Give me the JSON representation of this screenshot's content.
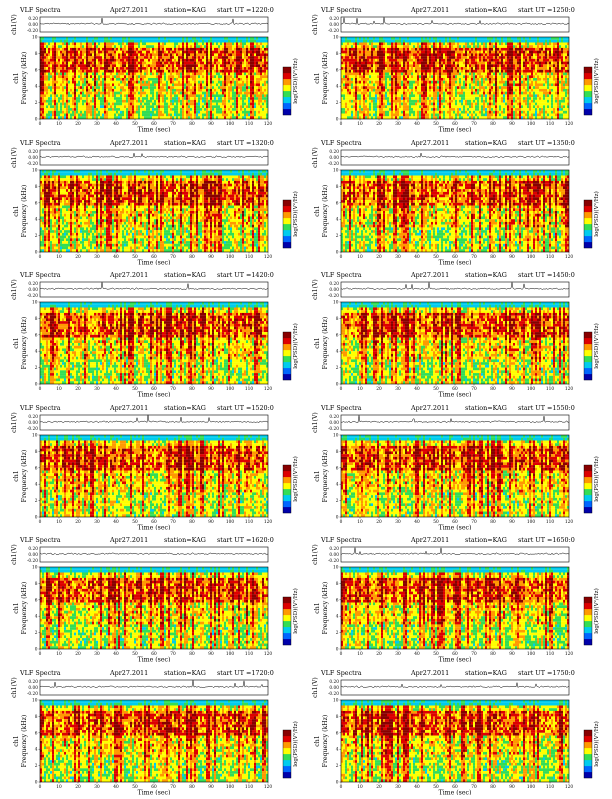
{
  "figure": {
    "panels": [
      {
        "ut": "1220:0"
      },
      {
        "ut": "1250:0"
      },
      {
        "ut": "1320:0"
      },
      {
        "ut": "1350:0"
      },
      {
        "ut": "1420:0"
      },
      {
        "ut": "1450:0"
      },
      {
        "ut": "1520:0"
      },
      {
        "ut": "1550:0"
      },
      {
        "ut": "1620:0"
      },
      {
        "ut": "1650:0"
      },
      {
        "ut": "1720:0"
      },
      {
        "ut": "1750:0"
      }
    ],
    "common": {
      "title_left": "VLF Spectra",
      "date": "Apr27.2011",
      "station": "station=KAG",
      "start_label": "start UT =",
      "top_ylabel": "ch1(V)",
      "top_ticks": [
        "0.20",
        "0.00",
        "-0.20"
      ],
      "spec_ylabel_ch": "ch1",
      "spec_ylabel": "Frequency (kHz)",
      "xlabel": "Time (sec)",
      "x_ticks": [
        "0",
        "10",
        "20",
        "30",
        "40",
        "50",
        "60",
        "70",
        "80",
        "90",
        "100",
        "110",
        "120"
      ],
      "y_ticks": [
        "0",
        "2",
        "4",
        "6",
        "8",
        "10"
      ],
      "colorbar_label": "log(PSD)(V²/Hz)"
    },
    "colors": {
      "spectrum_scale": [
        "#0000aa",
        "#0066ff",
        "#00ccee",
        "#33dd55",
        "#ffff00",
        "#ff9900",
        "#dd0000",
        "#880000"
      ],
      "background": "#ffffff",
      "trace": "#000000"
    }
  },
  "chart_data": [
    {
      "type": "heatmap",
      "title": "VLF Spectra Apr27.2011 station=KAG start UT =1220:0",
      "ylabel_top": "ch1(V)",
      "ylabel": "Frequency (kHz)",
      "xlabel": "Time (sec)",
      "xlim": [
        0,
        120
      ],
      "ylim": [
        0,
        10
      ],
      "top_ylim": [
        -0.2,
        0.2
      ],
      "colorbar_label": "log(PSD)(V²/Hz)"
    },
    {
      "type": "heatmap",
      "title": "VLF Spectra Apr27.2011 station=KAG start UT =1250:0",
      "ylabel_top": "ch1(V)",
      "ylabel": "Frequency (kHz)",
      "xlabel": "Time (sec)",
      "xlim": [
        0,
        120
      ],
      "ylim": [
        0,
        10
      ],
      "top_ylim": [
        -0.2,
        0.2
      ],
      "colorbar_label": "log(PSD)(V²/Hz)"
    },
    {
      "type": "heatmap",
      "title": "VLF Spectra Apr27.2011 station=KAG start UT =1320:0",
      "ylabel_top": "ch1(V)",
      "ylabel": "Frequency (kHz)",
      "xlabel": "Time (sec)",
      "xlim": [
        0,
        120
      ],
      "ylim": [
        0,
        10
      ],
      "top_ylim": [
        -0.2,
        0.2
      ],
      "colorbar_label": "log(PSD)(V²/Hz)"
    },
    {
      "type": "heatmap",
      "title": "VLF Spectra Apr27.2011 station=KAG start UT =1350:0",
      "ylabel_top": "ch1(V)",
      "ylabel": "Frequency (kHz)",
      "xlabel": "Time (sec)",
      "xlim": [
        0,
        120
      ],
      "ylim": [
        0,
        10
      ],
      "top_ylim": [
        -0.2,
        0.2
      ],
      "colorbar_label": "log(PSD)(V²/Hz)"
    },
    {
      "type": "heatmap",
      "title": "VLF Spectra Apr27.2011 station=KAG start UT =1420:0",
      "ylabel_top": "ch1(V)",
      "ylabel": "Frequency (kHz)",
      "xlabel": "Time (sec)",
      "xlim": [
        0,
        120
      ],
      "ylim": [
        0,
        10
      ],
      "top_ylim": [
        -0.2,
        0.2
      ],
      "colorbar_label": "log(PSD)(V²/Hz)"
    },
    {
      "type": "heatmap",
      "title": "VLF Spectra Apr27.2011 station=KAG start UT =1450:0",
      "ylabel_top": "ch1(V)",
      "ylabel": "Frequency (kHz)",
      "xlabel": "Time (sec)",
      "xlim": [
        0,
        120
      ],
      "ylim": [
        0,
        10
      ],
      "top_ylim": [
        -0.2,
        0.2
      ],
      "colorbar_label": "log(PSD)(V²/Hz)"
    },
    {
      "type": "heatmap",
      "title": "VLF Spectra Apr27.2011 station=KAG start UT =1520:0",
      "ylabel_top": "ch1(V)",
      "ylabel": "Frequency (kHz)",
      "xlabel": "Time (sec)",
      "xlim": [
        0,
        120
      ],
      "ylim": [
        0,
        10
      ],
      "top_ylim": [
        -0.2,
        0.2
      ],
      "colorbar_label": "log(PSD)(V²/Hz)"
    },
    {
      "type": "heatmap",
      "title": "VLF Spectra Apr27.2011 station=KAG start UT =1550:0",
      "ylabel_top": "ch1(V)",
      "ylabel": "Frequency (kHz)",
      "xlabel": "Time (sec)",
      "xlim": [
        0,
        120
      ],
      "ylim": [
        0,
        10
      ],
      "top_ylim": [
        -0.2,
        0.2
      ],
      "colorbar_label": "log(PSD)(V²/Hz)"
    },
    {
      "type": "heatmap",
      "title": "VLF Spectra Apr27.2011 station=KAG start UT =1620:0",
      "ylabel_top": "ch1(V)",
      "ylabel": "Frequency (kHz)",
      "xlabel": "Time (sec)",
      "xlim": [
        0,
        120
      ],
      "ylim": [
        0,
        10
      ],
      "top_ylim": [
        -0.2,
        0.2
      ],
      "colorbar_label": "log(PSD)(V²/Hz)"
    },
    {
      "type": "heatmap",
      "title": "VLF Spectra Apr27.2011 station=KAG start UT =1650:0",
      "ylabel_top": "ch1(V)",
      "ylabel": "Frequency (kHz)",
      "xlabel": "Time (sec)",
      "xlim": [
        0,
        120
      ],
      "ylim": [
        0,
        10
      ],
      "top_ylim": [
        -0.2,
        0.2
      ],
      "colorbar_label": "log(PSD)(V²/Hz)"
    },
    {
      "type": "heatmap",
      "title": "VLF Spectra Apr27.2011 station=KAG start UT =1720:0",
      "ylabel_top": "ch1(V)",
      "ylabel": "Frequency (kHz)",
      "xlabel": "Time (sec)",
      "xlim": [
        0,
        120
      ],
      "ylim": [
        0,
        10
      ],
      "top_ylim": [
        -0.2,
        0.2
      ],
      "colorbar_label": "log(PSD)(V²/Hz)"
    },
    {
      "type": "heatmap",
      "title": "VLF Spectra Apr27.2011 station=KAG start UT =1750:0",
      "ylabel_top": "ch1(V)",
      "ylabel": "Frequency (kHz)",
      "xlabel": "Time (sec)",
      "xlim": [
        0,
        120
      ],
      "ylim": [
        0,
        10
      ],
      "top_ylim": [
        -0.2,
        0.2
      ],
      "colorbar_label": "log(PSD)(V²/Hz)"
    }
  ]
}
